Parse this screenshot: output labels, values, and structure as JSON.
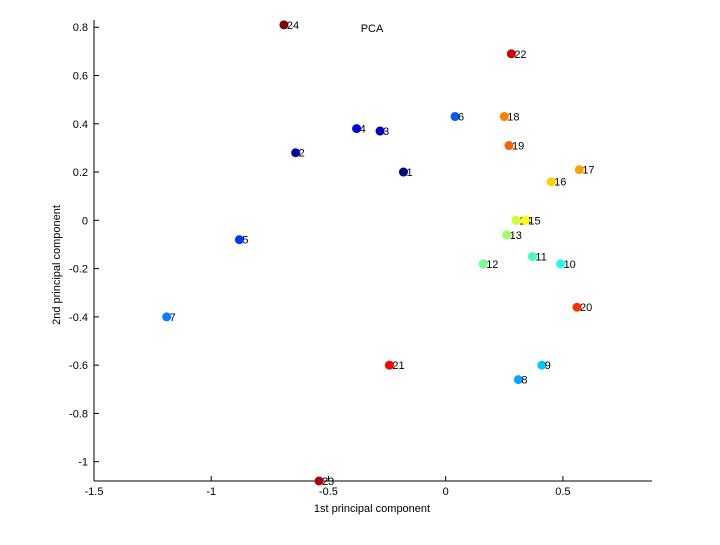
{
  "chart_data": {
    "type": "scatter",
    "title": "PCA",
    "xlabel": "1st principal component",
    "ylabel": "2nd principal component",
    "xlim": [
      -1.5,
      0.88
    ],
    "ylim": [
      -1.08,
      0.83
    ],
    "grid": false,
    "legend": "none",
    "xticks": [
      -1.5,
      -1,
      -0.5,
      0,
      0.5
    ],
    "xtick_labels": [
      "-1.5",
      "-1",
      "-0.5",
      "0",
      "0.5"
    ],
    "yticks": [
      -1,
      -0.8,
      -0.6,
      -0.4,
      -0.2,
      0,
      0.2,
      0.4,
      0.6,
      0.8
    ],
    "ytick_labels": [
      "-1",
      "-0.8",
      "-0.6",
      "-0.4",
      "-0.2",
      "0",
      "0.2",
      "0.4",
      "0.6",
      "0.8"
    ],
    "points": [
      {
        "label": "1",
        "x": -0.18,
        "y": 0.2,
        "color": "#000080"
      },
      {
        "label": "2",
        "x": -0.64,
        "y": 0.28,
        "color": "#0000a8"
      },
      {
        "label": "3",
        "x": -0.28,
        "y": 0.37,
        "color": "#0000c8"
      },
      {
        "label": "4",
        "x": -0.38,
        "y": 0.38,
        "color": "#0000e0"
      },
      {
        "label": "5",
        "x": -0.88,
        "y": -0.08,
        "color": "#0038ff"
      },
      {
        "label": "6",
        "x": 0.04,
        "y": 0.43,
        "color": "#0058ff"
      },
      {
        "label": "7",
        "x": -1.19,
        "y": -0.4,
        "color": "#0080ff"
      },
      {
        "label": "8",
        "x": 0.31,
        "y": -0.66,
        "color": "#00a8ff"
      },
      {
        "label": "9",
        "x": 0.41,
        "y": -0.6,
        "color": "#00c8ff"
      },
      {
        "label": "10",
        "x": 0.49,
        "y": -0.18,
        "color": "#20ffe0"
      },
      {
        "label": "11",
        "x": 0.37,
        "y": -0.15,
        "color": "#40ffc0"
      },
      {
        "label": "12",
        "x": 0.16,
        "y": -0.18,
        "color": "#70ff90"
      },
      {
        "label": "13",
        "x": 0.26,
        "y": -0.06,
        "color": "#a0ff60"
      },
      {
        "label": "14",
        "x": 0.3,
        "y": 0.0,
        "color": "#d0ff30"
      },
      {
        "label": "15",
        "x": 0.34,
        "y": 0.0,
        "color": "#ffff00"
      },
      {
        "label": "16",
        "x": 0.45,
        "y": 0.16,
        "color": "#ffd000"
      },
      {
        "label": "17",
        "x": 0.57,
        "y": 0.21,
        "color": "#ffa000"
      },
      {
        "label": "18",
        "x": 0.25,
        "y": 0.43,
        "color": "#ff8000"
      },
      {
        "label": "19",
        "x": 0.27,
        "y": 0.31,
        "color": "#ff6000"
      },
      {
        "label": "20",
        "x": 0.56,
        "y": -0.36,
        "color": "#ff3000"
      },
      {
        "label": "21",
        "x": -0.24,
        "y": -0.6,
        "color": "#ff0000"
      },
      {
        "label": "22",
        "x": 0.28,
        "y": 0.69,
        "color": "#d00000"
      },
      {
        "label": "23",
        "x": -0.54,
        "y": -1.08,
        "color": "#b00000"
      },
      {
        "label": "24",
        "x": -0.69,
        "y": 0.81,
        "color": "#800000"
      }
    ]
  }
}
